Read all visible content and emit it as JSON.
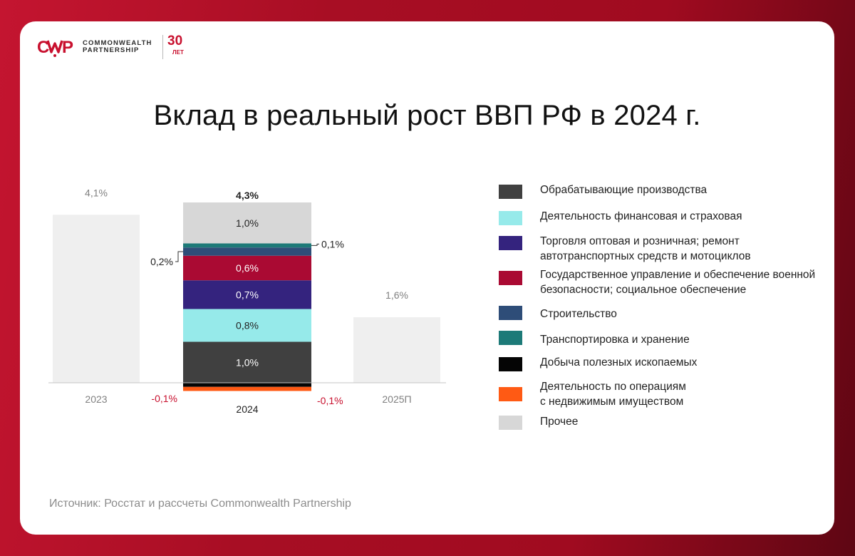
{
  "logo": {
    "line1": "COMMONWEALTH",
    "line2": "PARTNERSHIP",
    "years": "30",
    "years_sub": "ЛЕТ",
    "brand_color": "#c8102e"
  },
  "title": "Вклад в реальный рост ВВП РФ в 2024 г.",
  "source": "Источник: Росстат и рассчеты Commonwealth Partnership",
  "chart_data": {
    "type": "bar",
    "stacked": true,
    "title": "Вклад в реальный рост ВВП РФ в 2024 г.",
    "categories": [
      "2023",
      "2024",
      "2025П"
    ],
    "totals": [
      {
        "category": "2023",
        "value": 4.1,
        "label": "4,1%"
      },
      {
        "category": "2024",
        "value": 4.3,
        "label": "4,3%"
      },
      {
        "category": "2025П",
        "value": 1.6,
        "label": "1,6%"
      }
    ],
    "total_bar_color": "#efefef",
    "series": [
      {
        "name": "Обрабатывающие производства",
        "category": "2024",
        "value": 1.0,
        "label": "1,0%",
        "color": "#404040"
      },
      {
        "name": "Деятельность финансовая и страховая",
        "category": "2024",
        "value": 0.8,
        "label": "0,8%",
        "color": "#96eaea"
      },
      {
        "name": "Торговля оптовая и розничная; ремонт\nавтотранспортных средств и мотоциклов",
        "category": "2024",
        "value": 0.7,
        "label": "0,7%",
        "color": "#34237e"
      },
      {
        "name": "Государственное управление и обеспечение военной\nбезопасности; социальное обеспечение",
        "category": "2024",
        "value": 0.6,
        "label": "0,6%",
        "color": "#aa0a33"
      },
      {
        "name": "Строительство",
        "category": "2024",
        "value": 0.2,
        "label": "0,2%",
        "color": "#2e4d78"
      },
      {
        "name": "Транспортировка и хранение",
        "category": "2024",
        "value": 0.1,
        "label": "0,1%",
        "color": "#1d7a78"
      },
      {
        "name": "Добыча полезных ископаемых",
        "category": "2024",
        "value": -0.1,
        "label": "-0,1%",
        "color": "#050505"
      },
      {
        "name": "Деятельность по операциям\nс недвижимым имуществом",
        "category": "2024",
        "value": -0.1,
        "label": "-0,1%",
        "color": "#ff5a14"
      },
      {
        "name": "Прочее",
        "category": "2024",
        "value": 1.0,
        "label": "1,0%",
        "color": "#d7d7d7"
      }
    ],
    "label_colors": {
      "default": "#222222",
      "muted": "#808080",
      "negative": "#c8102e",
      "on_dark": "#ffffff"
    },
    "ylim": [
      -0.2,
      4.5
    ],
    "xlabel": "",
    "ylabel": "",
    "grid": false
  }
}
